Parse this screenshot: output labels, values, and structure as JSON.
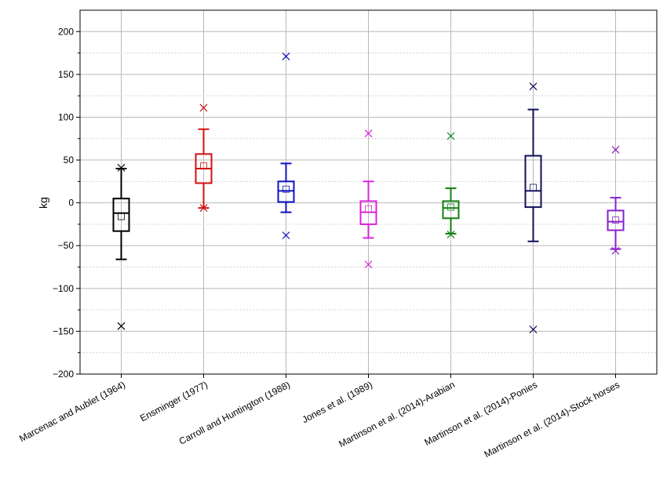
{
  "chart_data": {
    "type": "box",
    "ylabel": "kg",
    "xlabel": "",
    "ylim": [
      -200,
      225
    ],
    "yticks": [
      -200,
      -150,
      -100,
      -50,
      0,
      50,
      100,
      150,
      200
    ],
    "ytick_labels": [
      "−200",
      "−150",
      "−100",
      "−50",
      "0",
      "50",
      "100",
      "150",
      "200"
    ],
    "grid": true,
    "categories": [
      "Marcenac and Aublet (1964)",
      "Ensminger (1977)",
      "Carroll and Huntington (1988)",
      "Jones et al. (1989)",
      "Martinson et al. (2014)-Arabian",
      "Martinson et al. (2014)-Ponies",
      "Martinson et al. (2014)-Stock horses"
    ],
    "series": [
      {
        "whisker_low": -66,
        "q1": -33,
        "median": -12,
        "q3": 5,
        "whisker_high": 40,
        "mean": -16,
        "min": -144,
        "max": 41,
        "color": "#000000"
      },
      {
        "whisker_low": -6,
        "q1": 23,
        "median": 40,
        "q3": 57,
        "whisker_high": 86,
        "mean": 43,
        "min": -6,
        "max": 111,
        "color": "#d01010"
      },
      {
        "whisker_low": -11,
        "q1": 1,
        "median": 14,
        "q3": 25,
        "whisker_high": 46,
        "mean": 16,
        "min": -38,
        "max": 171,
        "color": "#1010c0"
      },
      {
        "whisker_low": -41,
        "q1": -25,
        "median": -11,
        "q3": 2,
        "whisker_high": 25,
        "mean": -7,
        "min": -72,
        "max": 81,
        "color": "#dd22dd"
      },
      {
        "whisker_low": -36,
        "q1": -18,
        "median": -6,
        "q3": 2,
        "whisker_high": 17,
        "mean": -5,
        "min": -37,
        "max": 78,
        "color": "#108010"
      },
      {
        "whisker_low": -45,
        "q1": -5,
        "median": 14,
        "q3": 55,
        "whisker_high": 109,
        "mean": 18,
        "min": -148,
        "max": 136,
        "color": "#10105a"
      },
      {
        "whisker_low": -54,
        "q1": -32,
        "median": -22,
        "q3": -9,
        "whisker_high": 6,
        "mean": -20,
        "min": -56,
        "max": 62,
        "color": "#8a22c8"
      }
    ]
  }
}
